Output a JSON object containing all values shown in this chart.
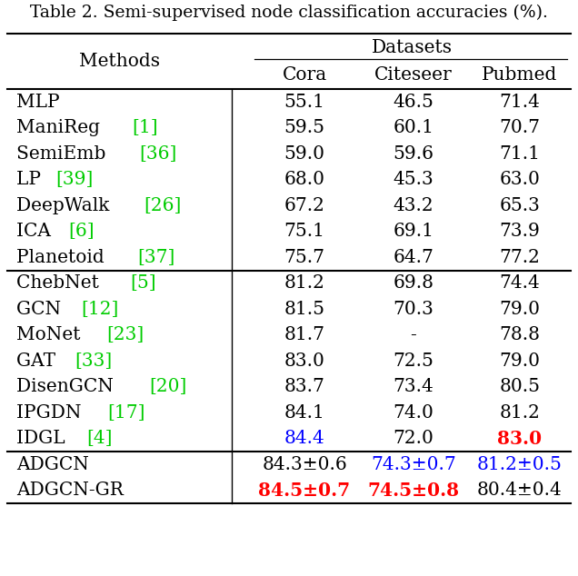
{
  "title": "Table 2. Semi-supervised node classification accuracies (%).",
  "header_group": "Datasets",
  "rows": [
    {
      "method_parts": [
        {
          "text": "MLP",
          "color": "black"
        }
      ],
      "values": [
        {
          "text": "55.1",
          "color": "black",
          "bold": false
        },
        {
          "text": "46.5",
          "color": "black",
          "bold": false
        },
        {
          "text": "71.4",
          "color": "black",
          "bold": false
        }
      ]
    },
    {
      "method_parts": [
        {
          "text": "ManiReg ",
          "color": "black"
        },
        {
          "text": "[1]",
          "color": "#00cc00"
        }
      ],
      "values": [
        {
          "text": "59.5",
          "color": "black",
          "bold": false
        },
        {
          "text": "60.1",
          "color": "black",
          "bold": false
        },
        {
          "text": "70.7",
          "color": "black",
          "bold": false
        }
      ]
    },
    {
      "method_parts": [
        {
          "text": "SemiEmb ",
          "color": "black"
        },
        {
          "text": "[36]",
          "color": "#00cc00"
        }
      ],
      "values": [
        {
          "text": "59.0",
          "color": "black",
          "bold": false
        },
        {
          "text": "59.6",
          "color": "black",
          "bold": false
        },
        {
          "text": "71.1",
          "color": "black",
          "bold": false
        }
      ]
    },
    {
      "method_parts": [
        {
          "text": "LP ",
          "color": "black"
        },
        {
          "text": "[39]",
          "color": "#00cc00"
        }
      ],
      "values": [
        {
          "text": "68.0",
          "color": "black",
          "bold": false
        },
        {
          "text": "45.3",
          "color": "black",
          "bold": false
        },
        {
          "text": "63.0",
          "color": "black",
          "bold": false
        }
      ]
    },
    {
      "method_parts": [
        {
          "text": "DeepWalk ",
          "color": "black"
        },
        {
          "text": "[26]",
          "color": "#00cc00"
        }
      ],
      "values": [
        {
          "text": "67.2",
          "color": "black",
          "bold": false
        },
        {
          "text": "43.2",
          "color": "black",
          "bold": false
        },
        {
          "text": "65.3",
          "color": "black",
          "bold": false
        }
      ]
    },
    {
      "method_parts": [
        {
          "text": "ICA ",
          "color": "black"
        },
        {
          "text": "[6]",
          "color": "#00cc00"
        }
      ],
      "values": [
        {
          "text": "75.1",
          "color": "black",
          "bold": false
        },
        {
          "text": "69.1",
          "color": "black",
          "bold": false
        },
        {
          "text": "73.9",
          "color": "black",
          "bold": false
        }
      ]
    },
    {
      "method_parts": [
        {
          "text": "Planetoid ",
          "color": "black"
        },
        {
          "text": "[37]",
          "color": "#00cc00"
        }
      ],
      "values": [
        {
          "text": "75.7",
          "color": "black",
          "bold": false
        },
        {
          "text": "64.7",
          "color": "black",
          "bold": false
        },
        {
          "text": "77.2",
          "color": "black",
          "bold": false
        }
      ]
    },
    {
      "method_parts": [
        {
          "text": "ChebNet ",
          "color": "black"
        },
        {
          "text": "[5]",
          "color": "#00cc00"
        }
      ],
      "values": [
        {
          "text": "81.2",
          "color": "black",
          "bold": false
        },
        {
          "text": "69.8",
          "color": "black",
          "bold": false
        },
        {
          "text": "74.4",
          "color": "black",
          "bold": false
        }
      ],
      "section_break_above": true
    },
    {
      "method_parts": [
        {
          "text": "GCN ",
          "color": "black"
        },
        {
          "text": "[12]",
          "color": "#00cc00"
        }
      ],
      "values": [
        {
          "text": "81.5",
          "color": "black",
          "bold": false
        },
        {
          "text": "70.3",
          "color": "black",
          "bold": false
        },
        {
          "text": "79.0",
          "color": "black",
          "bold": false
        }
      ]
    },
    {
      "method_parts": [
        {
          "text": "MoNet ",
          "color": "black"
        },
        {
          "text": "[23]",
          "color": "#00cc00"
        }
      ],
      "values": [
        {
          "text": "81.7",
          "color": "black",
          "bold": false
        },
        {
          "text": "-",
          "color": "black",
          "bold": false
        },
        {
          "text": "78.8",
          "color": "black",
          "bold": false
        }
      ]
    },
    {
      "method_parts": [
        {
          "text": "GAT ",
          "color": "black"
        },
        {
          "text": "[33]",
          "color": "#00cc00"
        }
      ],
      "values": [
        {
          "text": "83.0",
          "color": "black",
          "bold": false
        },
        {
          "text": "72.5",
          "color": "black",
          "bold": false
        },
        {
          "text": "79.0",
          "color": "black",
          "bold": false
        }
      ]
    },
    {
      "method_parts": [
        {
          "text": "DisenGCN ",
          "color": "black"
        },
        {
          "text": "[20]",
          "color": "#00cc00"
        }
      ],
      "values": [
        {
          "text": "83.7",
          "color": "black",
          "bold": false
        },
        {
          "text": "73.4",
          "color": "black",
          "bold": false
        },
        {
          "text": "80.5",
          "color": "black",
          "bold": false
        }
      ]
    },
    {
      "method_parts": [
        {
          "text": "IPGDN ",
          "color": "black"
        },
        {
          "text": "[17]",
          "color": "#00cc00"
        }
      ],
      "values": [
        {
          "text": "84.1",
          "color": "black",
          "bold": false
        },
        {
          "text": "74.0",
          "color": "black",
          "bold": false
        },
        {
          "text": "81.2",
          "color": "black",
          "bold": false
        }
      ]
    },
    {
      "method_parts": [
        {
          "text": "IDGL ",
          "color": "black"
        },
        {
          "text": "[4]",
          "color": "#00cc00"
        }
      ],
      "values": [
        {
          "text": "84.4",
          "color": "blue",
          "bold": false
        },
        {
          "text": "72.0",
          "color": "black",
          "bold": false
        },
        {
          "text": "83.0",
          "color": "red",
          "bold": true
        }
      ]
    },
    {
      "method_parts": [
        {
          "text": "ADGCN",
          "color": "black"
        }
      ],
      "values": [
        {
          "text": "84.3±0.6",
          "color": "black",
          "bold": false
        },
        {
          "text": "74.3±0.7",
          "color": "blue",
          "bold": false
        },
        {
          "text": "81.2±0.5",
          "color": "blue",
          "bold": false
        }
      ],
      "section_break_above": true
    },
    {
      "method_parts": [
        {
          "text": "ADGCN-GR",
          "color": "black"
        }
      ],
      "values": [
        {
          "text": "84.5±0.7",
          "color": "red",
          "bold": true
        },
        {
          "text": "74.5±0.8",
          "color": "red",
          "bold": true
        },
        {
          "text": "80.4±0.4",
          "color": "black",
          "bold": false
        }
      ]
    }
  ],
  "bg_color": "white",
  "font_size": 14.5
}
